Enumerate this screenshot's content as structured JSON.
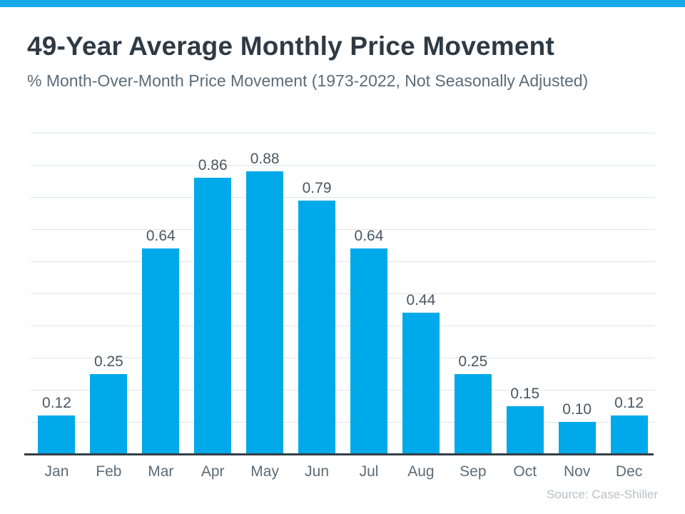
{
  "page": {
    "title": "49-Year Average Monthly Price Movement",
    "subtitle": "% Month-Over-Month Price Movement (1973-2022, Not Seasonally Adjusted)",
    "source": "Source: Case-Shiller"
  },
  "colors": {
    "banner": "#16A9E9",
    "bar": "#00A9E9",
    "title": "#2E3A44",
    "subtitle": "#5C6C78",
    "value_label": "#4A5763",
    "month_label": "#5C6C78",
    "gridline": "#E0E4E6",
    "axis": "#333F48",
    "source": "#B8C0C8",
    "background": "#FFFFFF"
  },
  "chart_data": {
    "type": "bar",
    "title": "49-Year Average Monthly Price Movement",
    "subtitle": "% Month-Over-Month Price Movement (1973-2022, Not Seasonally Adjusted)",
    "categories": [
      "Jan",
      "Feb",
      "Mar",
      "Apr",
      "May",
      "Jun",
      "Jul",
      "Aug",
      "Sep",
      "Oct",
      "Nov",
      "Dec"
    ],
    "values": [
      0.12,
      0.25,
      0.64,
      0.86,
      0.88,
      0.79,
      0.64,
      0.44,
      0.25,
      0.15,
      0.1,
      0.12
    ],
    "value_labels": [
      "0.12",
      "0.25",
      "0.64",
      "0.86",
      "0.88",
      "0.79",
      "0.64",
      "0.44",
      "0.25",
      "0.15",
      "0.10",
      "0.12"
    ],
    "xlabel": "",
    "ylabel": "",
    "ylim": [
      0,
      1.0
    ],
    "gridline_step": 0.1,
    "grid": true,
    "legend": false,
    "y_tick_labels_shown": false,
    "bar_color": "#00A9E9",
    "source_note": "Source: Case-Shiller"
  }
}
